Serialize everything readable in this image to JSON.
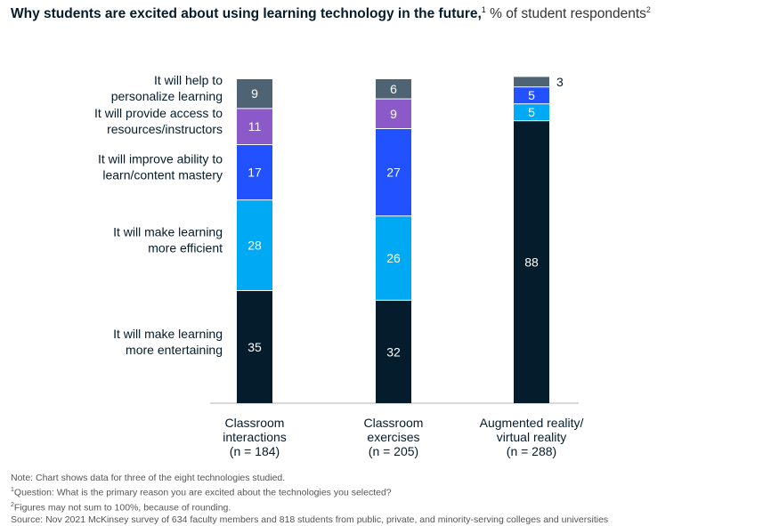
{
  "title": {
    "main": "Why students are excited about using learning technology in the future,",
    "main_sup": "1",
    "sub": " % of student respondents",
    "sub_sup": "2"
  },
  "notes": {
    "note": "Note: Chart shows data for three of the eight technologies studied.",
    "footnote1_mark": "1",
    "footnote1": "Question: What is the primary reason you are excited about the technologies you selected?",
    "footnote2_mark": "2",
    "footnote2": "Figures may not sum to 100%, because of rounding.",
    "source": "Source: Nov 2021 McKinsey survey of 634 faculty members and 818 students from public, private, and minority-serving colleges and universities"
  },
  "chart_data": {
    "type": "bar",
    "stacked": true,
    "categories": [
      [
        "Classroom",
        "interactions",
        "(n = 184)"
      ],
      [
        "Classroom",
        "exercises",
        "(n = 205)"
      ],
      [
        "Augmented reality/",
        "virtual reality",
        "(n = 288)"
      ]
    ],
    "series": [
      {
        "name": [
          "It will make learning",
          "more entertaining"
        ],
        "color": "#051c2c",
        "values": [
          35,
          32,
          88
        ]
      },
      {
        "name": [
          "It will make learning",
          "more efficient"
        ],
        "color": "#00a9f4",
        "values": [
          28,
          26,
          5
        ]
      },
      {
        "name": [
          "It will improve ability to",
          "learn/content mastery"
        ],
        "color": "#2251ff",
        "values": [
          17,
          27,
          5
        ]
      },
      {
        "name": [
          "It will provide access to",
          "resources/instructors"
        ],
        "color": "#8c5ac8",
        "values": [
          11,
          9,
          0
        ]
      },
      {
        "name": [
          "It will help to",
          "personalize learning"
        ],
        "color": "#4e6474",
        "values": [
          9,
          6,
          3
        ]
      }
    ],
    "ylim": [
      0,
      106
    ],
    "grid": false,
    "legend": "left"
  }
}
